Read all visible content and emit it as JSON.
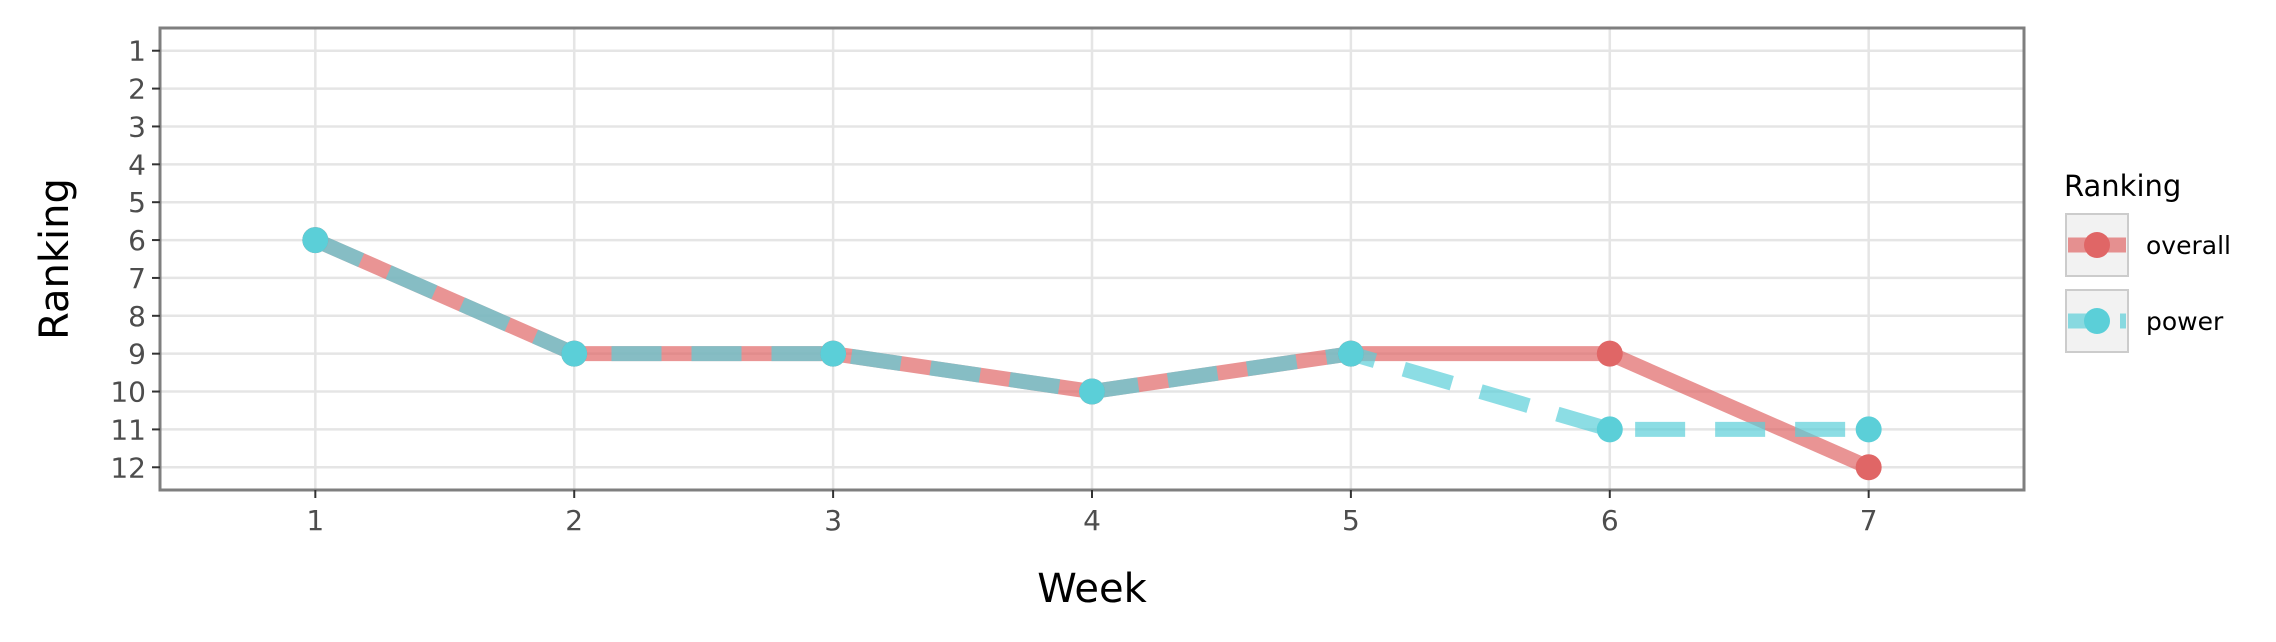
{
  "chart_data": {
    "type": "line",
    "xlabel": "Week",
    "ylabel": "Ranking",
    "x": [
      1,
      2,
      3,
      4,
      5,
      6,
      7
    ],
    "xlim": [
      0.4,
      7.6
    ],
    "ylim": [
      12.6,
      0.4
    ],
    "y_reversed": true,
    "yticks": [
      1,
      2,
      3,
      4,
      5,
      6,
      7,
      8,
      9,
      10,
      11,
      12
    ],
    "xticks": [
      1,
      2,
      3,
      4,
      5,
      6,
      7
    ],
    "grid": true,
    "legend": {
      "title": "Ranking",
      "placement": "right"
    },
    "series": [
      {
        "name": "overall",
        "values": [
          6,
          9,
          9,
          10,
          9,
          9,
          12
        ],
        "color": "#e06666",
        "line_style": "solid"
      },
      {
        "name": "power",
        "values": [
          6,
          9,
          9,
          10,
          9,
          11,
          11
        ],
        "color": "#5bcfd8",
        "line_style": "dashed"
      }
    ]
  }
}
